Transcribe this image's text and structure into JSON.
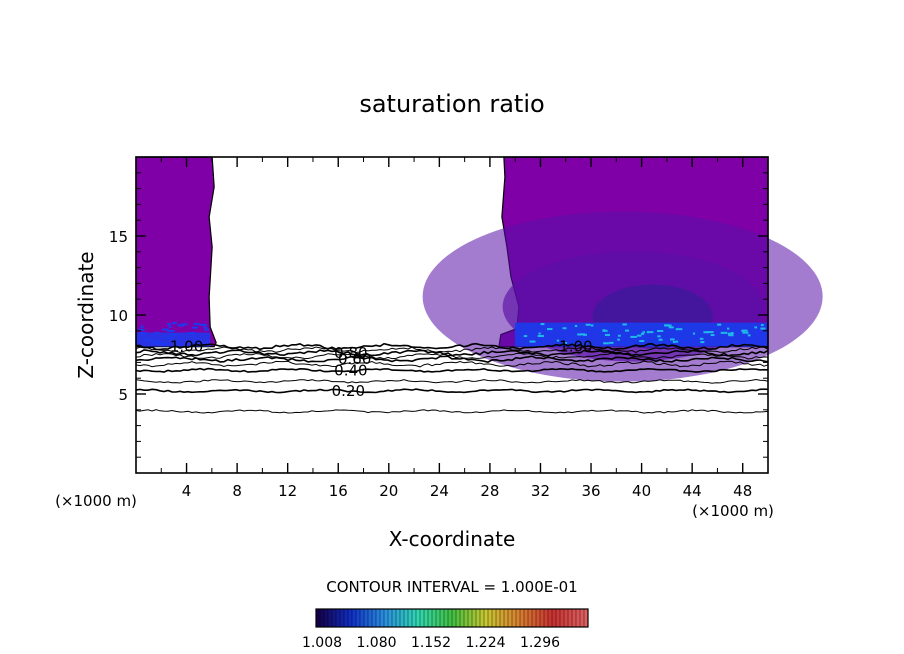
{
  "chart_data": {
    "type": "contour",
    "title": "saturation ratio",
    "xlabel": "X-coordinate",
    "ylabel": "Z-coordinate",
    "x_unit_left": "(×1000 m)",
    "x_unit_right": "(×1000 m)",
    "xlim": [
      0,
      50
    ],
    "ylim": [
      0,
      20
    ],
    "xticks": [
      4,
      8,
      12,
      16,
      20,
      24,
      28,
      32,
      36,
      40,
      44,
      48
    ],
    "yticks": [
      5,
      10,
      15
    ],
    "contour_levels": [
      {
        "label": "0.20",
        "z": 5.2
      },
      {
        "label": "0.40",
        "z": 6.5
      },
      {
        "label": "0.60",
        "z": 7.2
      },
      {
        "label": "0.80",
        "z": 7.6
      },
      {
        "label": "1.00",
        "z": 8.0
      }
    ],
    "unlabeled_contour_z": [
      3.9,
      5.8,
      6.9,
      7.4,
      7.8
    ],
    "clear_region_x": [
      6.5,
      29.5
    ],
    "filled_region_bottom_z": 8.0,
    "contour_interval_text": "CONTOUR INTERVAL = 1.000E-01",
    "colorbar": {
      "tick_labels": [
        "1.008",
        "1.080",
        "1.152",
        "1.224",
        "1.296"
      ],
      "colors": [
        "#14004a",
        "#1030c8",
        "#2a90e0",
        "#30d8b0",
        "#40c040",
        "#c8c830",
        "#d88030",
        "#c83030",
        "#e06060"
      ]
    },
    "colors": {
      "fill_main": "#7e00a6",
      "fill_dark": "#5a10a8",
      "fill_deep": "#3a1a9a",
      "fill_blue": "#1a3cf0",
      "fill_cyan": "#20b8e8"
    }
  }
}
